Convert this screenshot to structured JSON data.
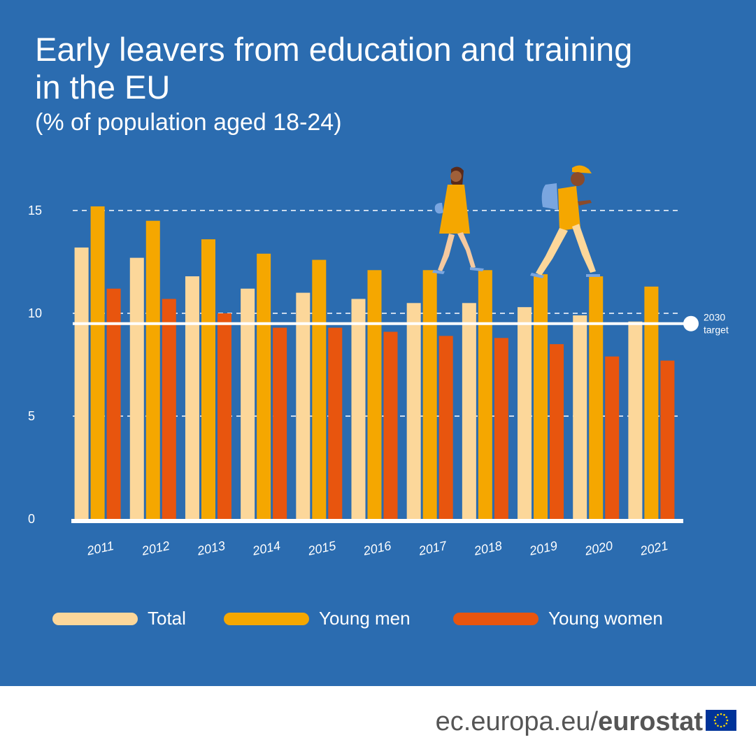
{
  "title": "Early leavers from education and training in the EU",
  "subtitle": "(% of population aged 18-24)",
  "footer": {
    "domain": "ec.europa.eu/",
    "brand": "eurostat"
  },
  "colors": {
    "background": "#2b6cb0",
    "total": "#fcd79a",
    "young_men": "#f5a700",
    "young_women": "#e8550e",
    "gridline": "#ffffff"
  },
  "icons": [
    "walking-girl-illustration",
    "walking-boy-illustration",
    "eu-flag-icon"
  ],
  "chart_data": {
    "type": "bar",
    "title": "Early leavers from education and training in the EU",
    "subtitle": "(% of population aged 18-24)",
    "categories": [
      "2011",
      "2012",
      "2013",
      "2014",
      "2015",
      "2016",
      "2017",
      "2018",
      "2019",
      "2020",
      "2021"
    ],
    "series": [
      {
        "name": "Total",
        "values": [
          13.2,
          12.7,
          11.8,
          11.2,
          11.0,
          10.7,
          10.5,
          10.5,
          10.3,
          9.9,
          9.6
        ]
      },
      {
        "name": "Young men",
        "values": [
          15.2,
          14.5,
          13.6,
          12.9,
          12.6,
          12.1,
          12.1,
          12.1,
          11.9,
          11.8,
          11.3
        ]
      },
      {
        "name": "Young women",
        "values": [
          11.2,
          10.7,
          10.0,
          9.3,
          9.3,
          9.1,
          8.9,
          8.8,
          8.5,
          7.9,
          7.7
        ]
      }
    ],
    "yticks": [
      0,
      5,
      10,
      15
    ],
    "ylim": [
      0,
      16
    ],
    "grid": true,
    "target": {
      "value": 9.5,
      "label_line1": "2030",
      "label_line2": "target"
    },
    "legend_position": "bottom"
  }
}
